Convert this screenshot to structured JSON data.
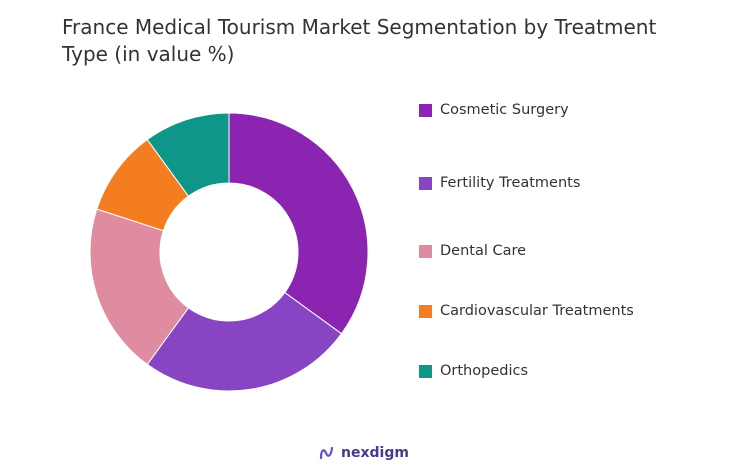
{
  "chart_data": {
    "type": "pie",
    "title": "France Medical Tourism Market Segmentation by Treatment Type (in value %)",
    "categories": [
      "Cosmetic Surgery",
      "Fertility Treatments",
      "Dental Care",
      "Cardiovascular Treatments",
      "Orthopedics"
    ],
    "values": [
      35,
      25,
      20,
      10,
      10
    ],
    "colors": [
      "#8a24b1",
      "#8845c3",
      "#df8ca0",
      "#f47d20",
      "#0e9688"
    ],
    "donut": true,
    "legend_position": "right"
  },
  "brand": {
    "name": "nexdigm",
    "icon": "nexdigm-logo-icon"
  }
}
